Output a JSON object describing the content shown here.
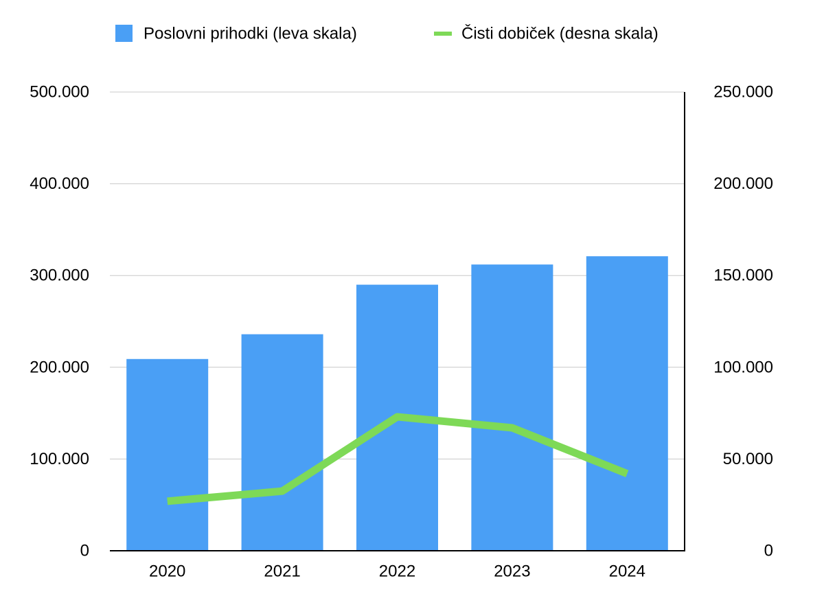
{
  "chart_data": {
    "type": "bar",
    "categories": [
      "2020",
      "2021",
      "2022",
      "2023",
      "2024"
    ],
    "series": [
      {
        "name": "Poslovni prihodki (leva skala)",
        "type": "bar",
        "axis": "left",
        "color": "#4a9ff5",
        "values": [
          209000,
          236000,
          290000,
          312000,
          321000
        ]
      },
      {
        "name": "Čisti dobiček (desna skala)",
        "type": "line",
        "axis": "right",
        "color": "#7ed957",
        "values": [
          27000,
          32500,
          73000,
          67000,
          42000
        ]
      }
    ],
    "y_left": {
      "ylim": [
        0,
        500000
      ],
      "ticks": [
        0,
        100000,
        200000,
        300000,
        400000,
        500000
      ],
      "tick_labels": [
        "0",
        "100.000",
        "200.000",
        "300.000",
        "400.000",
        "500.000"
      ]
    },
    "y_right": {
      "ylim": [
        0,
        250000
      ],
      "ticks": [
        0,
        50000,
        100000,
        150000,
        200000,
        250000
      ],
      "tick_labels": [
        "0",
        "50.000",
        "100.000",
        "150.000",
        "200.000",
        "250.000"
      ]
    },
    "grid": true,
    "grid_color": "#c8c8c8",
    "axis_color": "#000000",
    "legend_position": "top-center",
    "title": "",
    "xlabel": "",
    "ylabel": ""
  }
}
